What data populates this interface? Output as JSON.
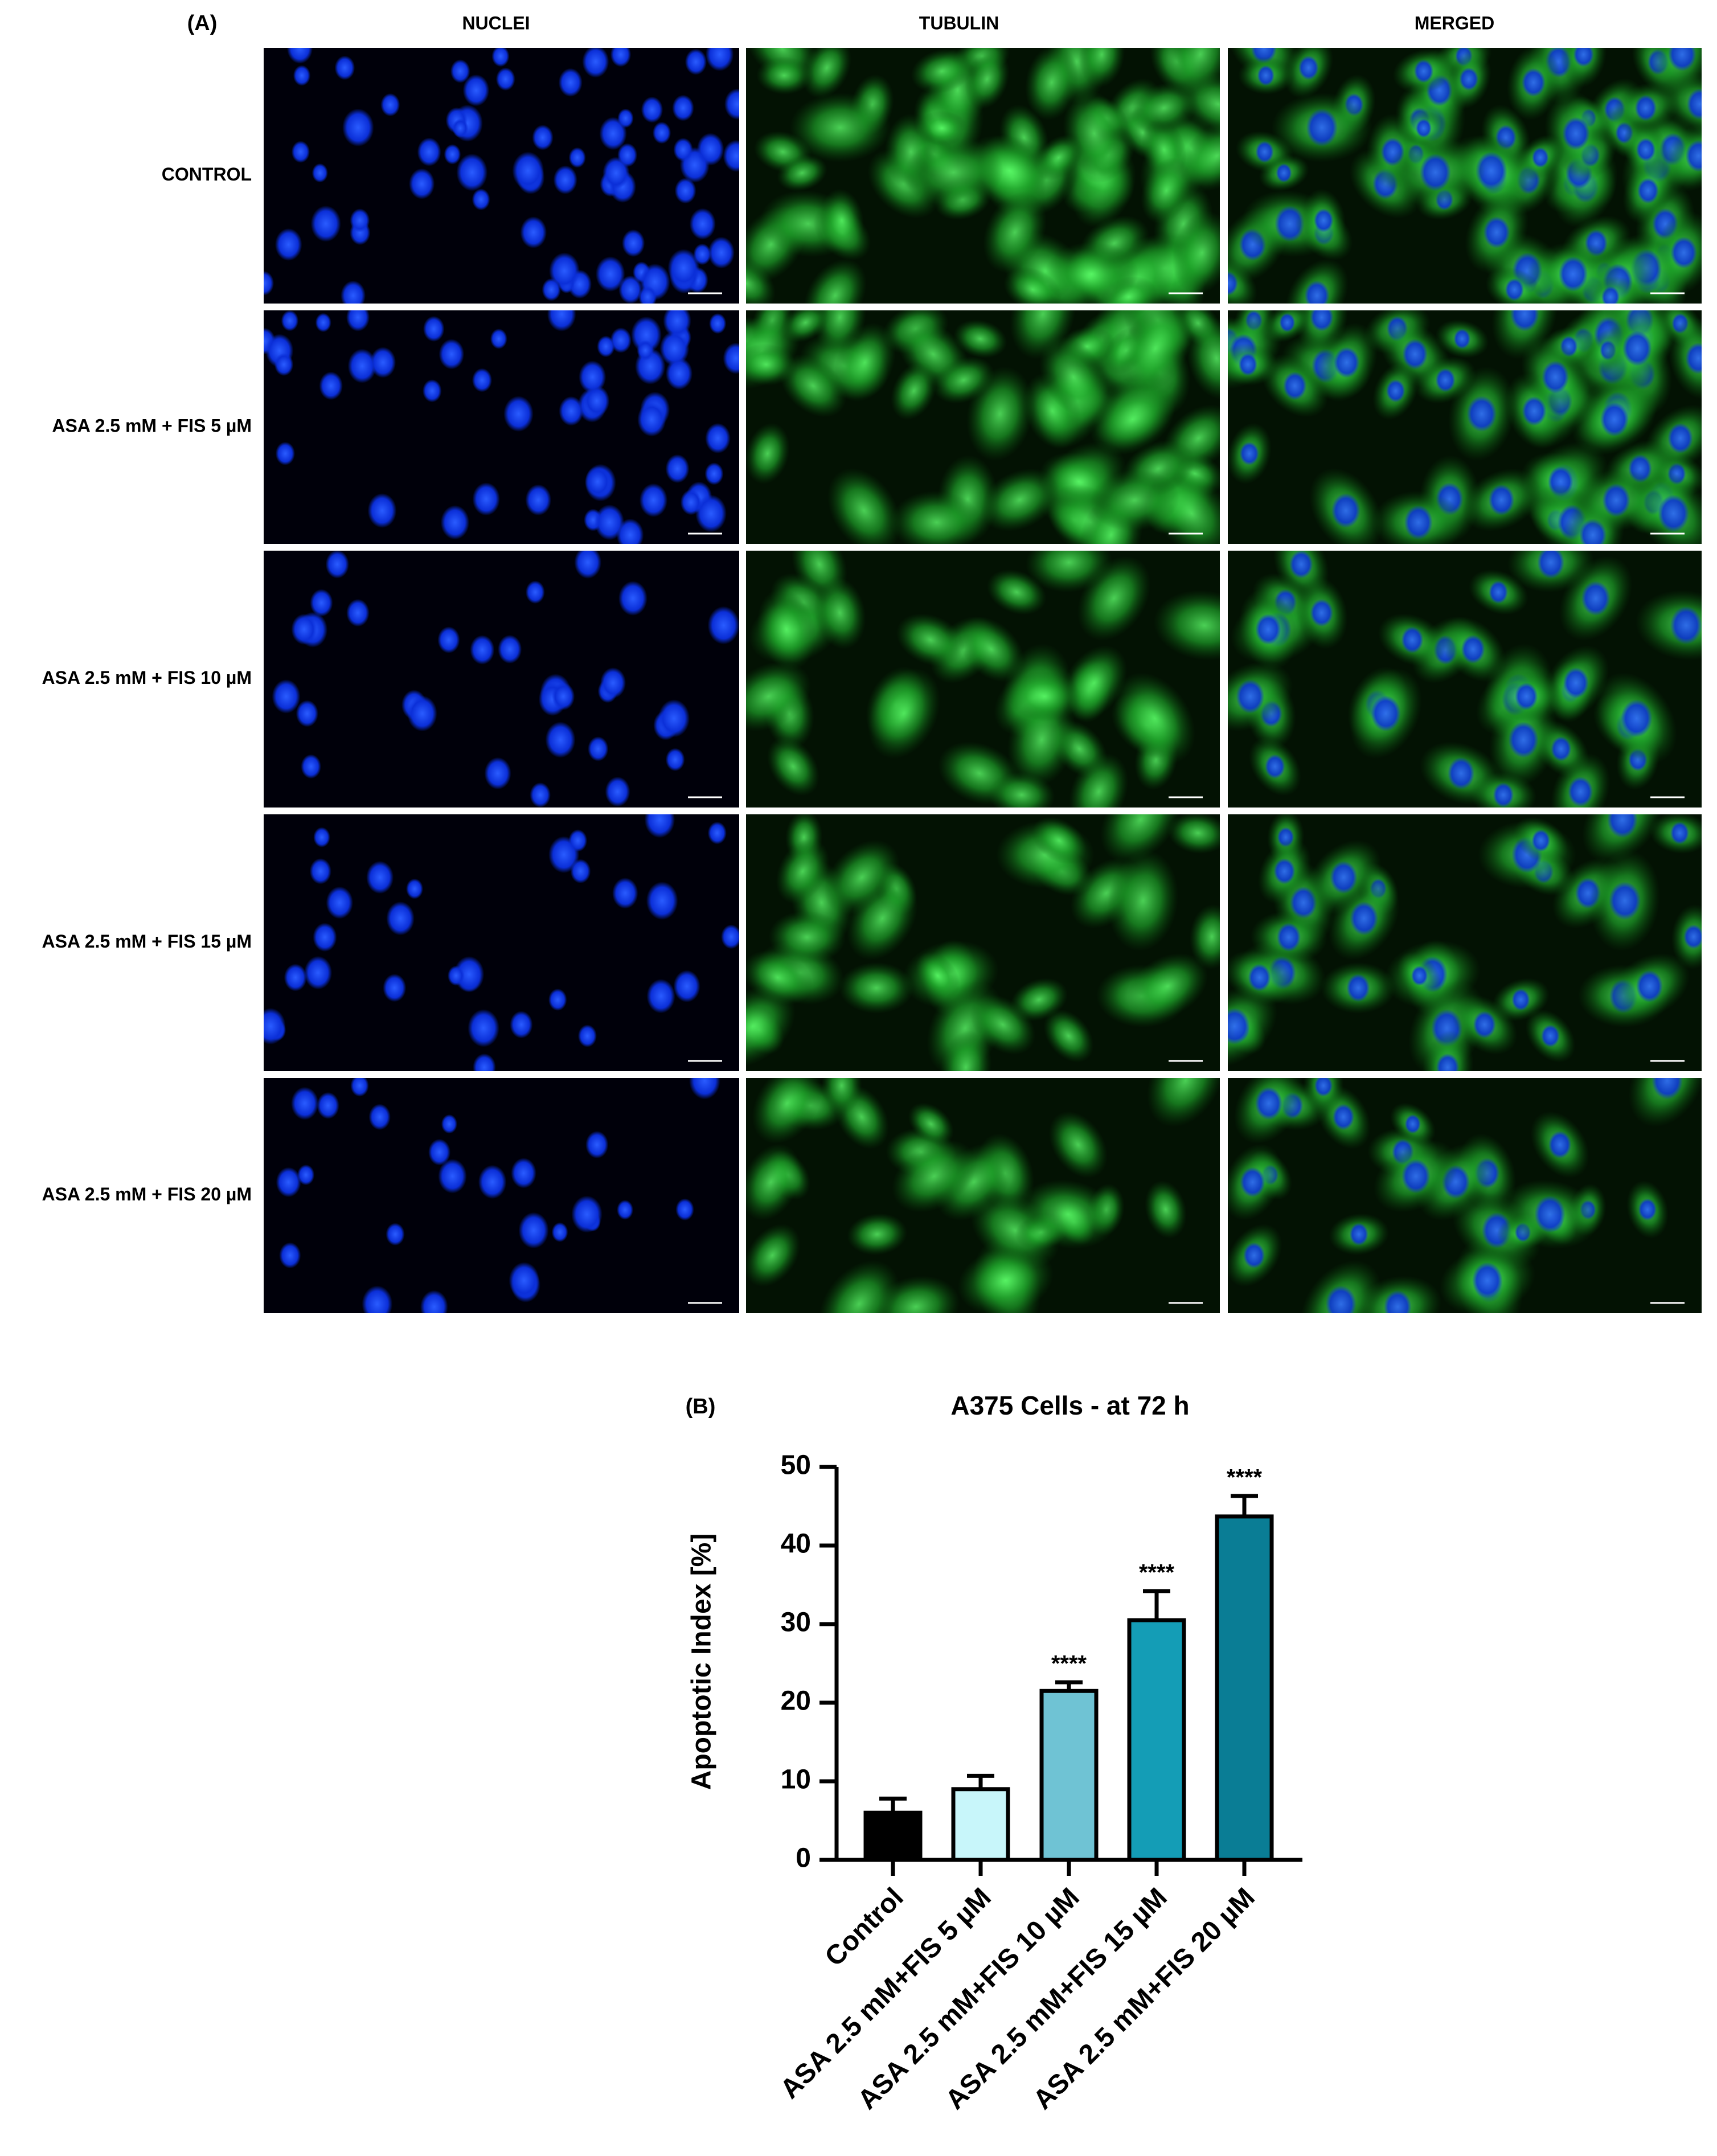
{
  "panel_a": {
    "label": "(A)",
    "columns": [
      "NUCLEI",
      "TUBULIN",
      "MERGED"
    ],
    "rows": [
      "CONTROL",
      "ASA 2.5 mM + FIS 5 µM",
      "ASA 2.5 mM + FIS 10 µM",
      "ASA 2.5 mM + FIS 15 µM",
      "ASA 2.5 mM + FIS 20 µM"
    ]
  },
  "panel_b_label": "(B)",
  "chart_data": {
    "type": "bar",
    "title": "A375 Cells - at 72 h",
    "y_label": "Apoptotic Index [%]",
    "categories": [
      "Control",
      "ASA 2.5 mM+FIS 5 µM",
      "ASA 2.5 mM+FIS 10 µM",
      "ASA 2.5 mM+FIS 15 µM",
      "ASA 2.5 mM+FIS 20 µM"
    ],
    "values": [
      6,
      9,
      21.5,
      30.5,
      43.7
    ],
    "errors": [
      1.8,
      1.7,
      1.1,
      3.7,
      2.6
    ],
    "colors": [
      "#000000",
      "#c8f6fa",
      "#6fc3d4",
      "#149db6",
      "#0a7d95"
    ],
    "significance": [
      null,
      null,
      "****",
      "****",
      "****"
    ],
    "ylim": [
      0,
      50
    ],
    "yticks": [
      0,
      10,
      20,
      30,
      40,
      50
    ],
    "grid": false
  }
}
